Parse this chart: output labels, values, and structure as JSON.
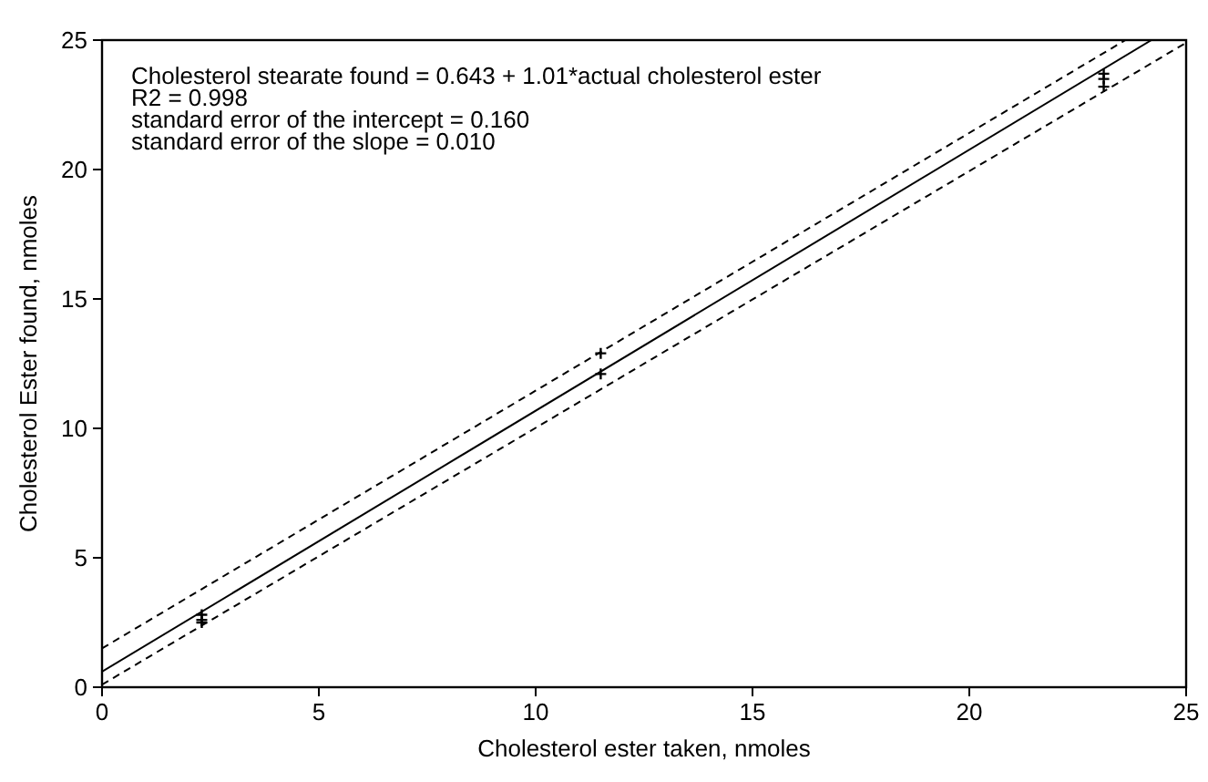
{
  "chart_data": {
    "type": "scatter",
    "xlabel": "Cholesterol ester taken, nmoles",
    "ylabel": "Cholesterol Ester found, nmoles",
    "xlim": [
      0,
      25
    ],
    "ylim": [
      0,
      25
    ],
    "xticks": [
      0,
      5,
      10,
      15,
      20,
      25
    ],
    "yticks": [
      0,
      5,
      10,
      15,
      20,
      25
    ],
    "grid": false,
    "annotations": [
      "Cholesterol stearate found = 0.643 + 1.01*actual cholesterol ester",
      "R2 = 0.998",
      "standard error of the intercept = 0.160",
      "standard error of the slope = 0.010"
    ],
    "series": [
      {
        "marker": "cross",
        "color": "#000000",
        "x": [
          2.3,
          2.3,
          2.3,
          11.5,
          11.5,
          23.1,
          23.1,
          23.1
        ],
        "values": [
          2.5,
          2.6,
          2.8,
          12.9,
          12.1,
          23.2,
          23.5,
          23.7
        ]
      },
      {
        "type": "line",
        "line_style": "solid",
        "color": "#000000",
        "x": [
          0,
          24.2
        ],
        "values": [
          0.6,
          25
        ]
      },
      {
        "type": "line",
        "line_style": "dashed",
        "color": "#000000",
        "x": [
          0,
          23.6
        ],
        "values": [
          1.5,
          25
        ]
      },
      {
        "type": "line",
        "line_style": "dashed",
        "color": "#000000",
        "x": [
          0,
          25
        ],
        "values": [
          0.1,
          24.9
        ]
      }
    ]
  }
}
